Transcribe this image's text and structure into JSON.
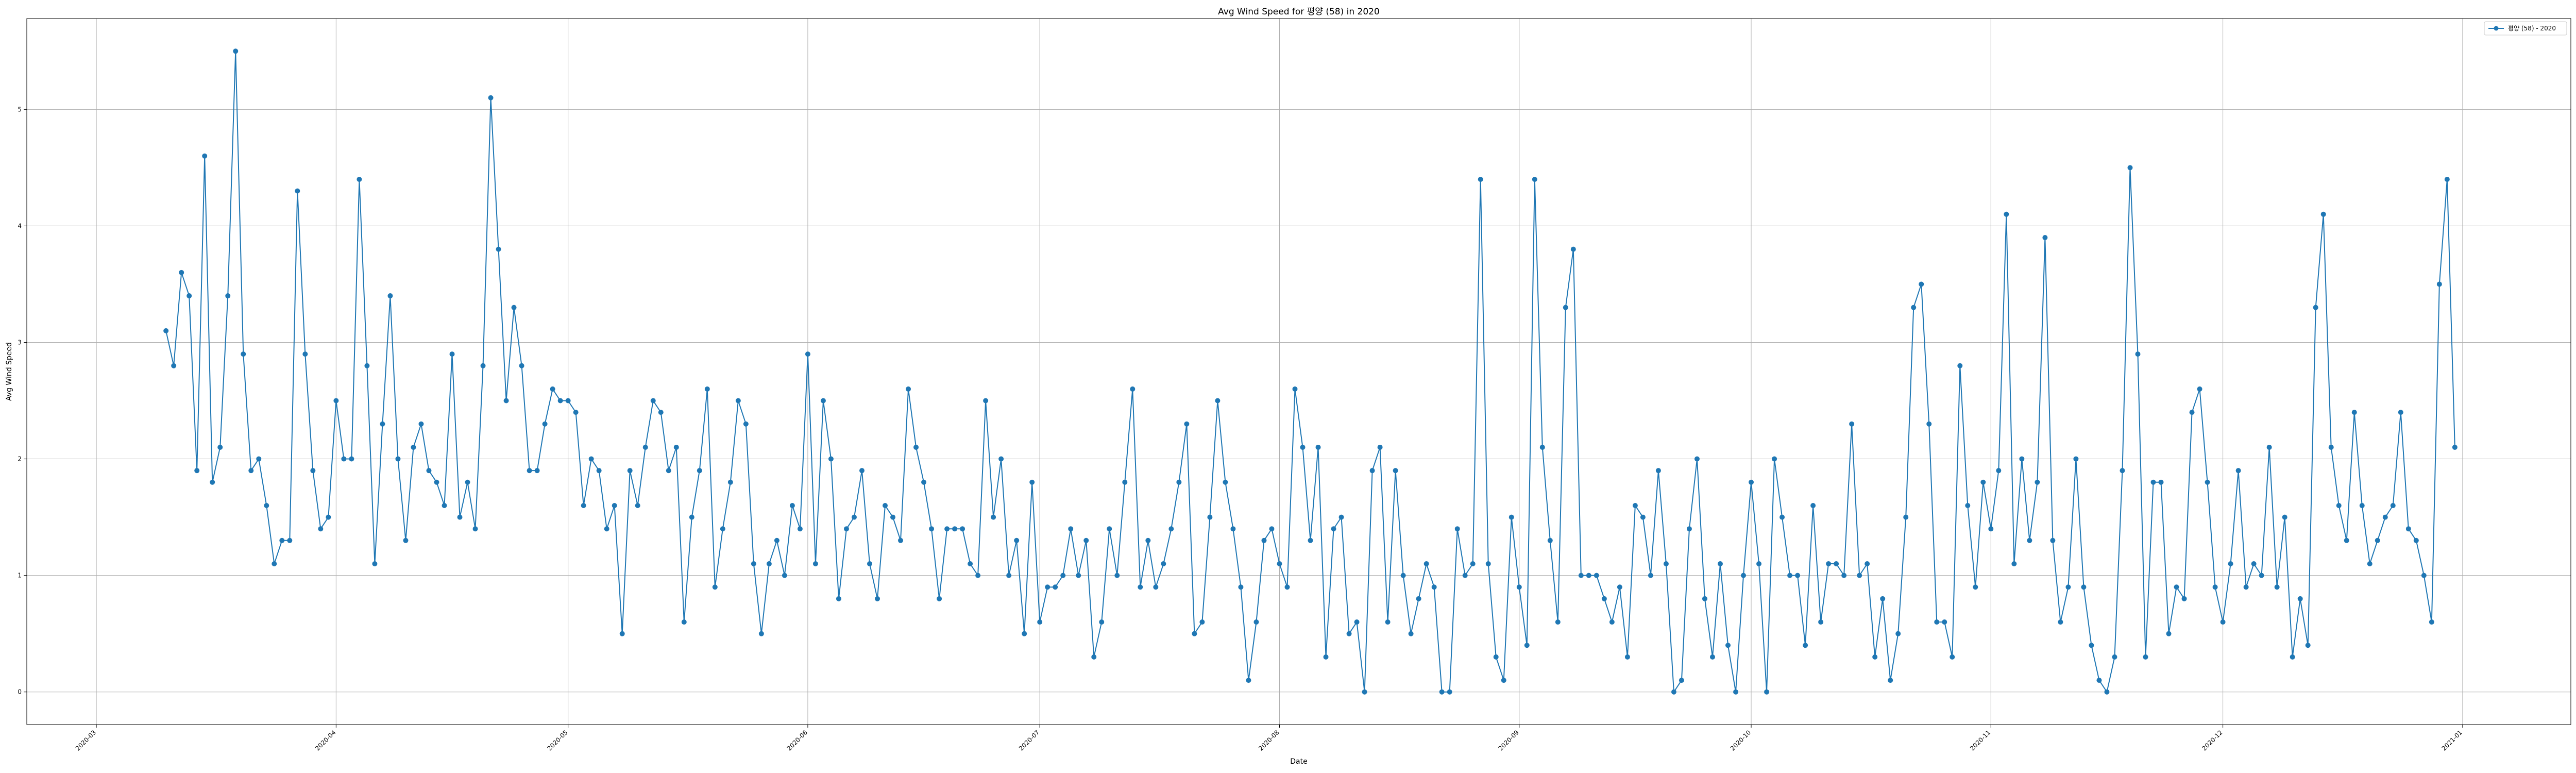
{
  "chart_data": {
    "type": "line",
    "title": "Avg Wind Speed for 평양 (58) in 2020",
    "xlabel": "Date",
    "ylabel": "Avg Wind Speed",
    "xlim": [
      "2020-02-21",
      "2021-01-15"
    ],
    "ylim": [
      -0.28,
      5.78
    ],
    "grid": true,
    "legend_position": "top-right",
    "x_ticks": [
      "2020-03",
      "2020-04",
      "2020-05",
      "2020-06",
      "2020-07",
      "2020-08",
      "2020-09",
      "2020-10",
      "2020-11",
      "2020-12",
      "2021-01"
    ],
    "y_ticks": [
      "0",
      "1",
      "2",
      "3",
      "4",
      "5"
    ],
    "colors": {
      "series": "#1f77b4",
      "grid": "#b0b0b0"
    },
    "start_date": "2020-03-10",
    "series": [
      {
        "name": "평양 (58) - 2020",
        "values": [
          3.1,
          2.8,
          3.6,
          3.4,
          1.9,
          4.6,
          1.8,
          2.1,
          3.4,
          5.5,
          2.9,
          1.9,
          2.0,
          1.6,
          1.1,
          1.3,
          1.3,
          4.3,
          2.9,
          1.9,
          1.4,
          1.5,
          2.5,
          2.0,
          2.0,
          4.4,
          2.8,
          1.1,
          2.3,
          3.4,
          2.0,
          1.3,
          2.1,
          2.3,
          1.9,
          1.8,
          1.6,
          2.9,
          1.5,
          1.8,
          1.4,
          2.8,
          5.1,
          3.8,
          2.5,
          3.3,
          2.8,
          1.9,
          1.9,
          2.3,
          2.6,
          2.5,
          2.5,
          2.4,
          1.6,
          2.0,
          1.9,
          1.4,
          1.6,
          0.5,
          1.9,
          1.6,
          2.1,
          2.5,
          2.4,
          1.9,
          2.1,
          0.6,
          1.5,
          1.9,
          2.6,
          0.9,
          1.4,
          1.8,
          2.5,
          2.3,
          1.1,
          0.5,
          1.1,
          1.3,
          1.0,
          1.6,
          1.4,
          2.9,
          1.1,
          2.5,
          2.0,
          0.8,
          1.4,
          1.5,
          1.9,
          1.1,
          0.8,
          1.6,
          1.5,
          1.3,
          2.6,
          2.1,
          1.8,
          1.4,
          0.8,
          1.4,
          1.4,
          1.4,
          1.1,
          1.0,
          2.5,
          1.5,
          2.0,
          1.0,
          1.3,
          0.5,
          1.8,
          0.6,
          0.9,
          0.9,
          1.0,
          1.4,
          1.0,
          1.3,
          0.3,
          0.6,
          1.4,
          1.0,
          1.8,
          2.6,
          0.9,
          1.3,
          0.9,
          1.1,
          1.4,
          1.8,
          2.3,
          0.5,
          0.6,
          1.5,
          2.5,
          1.8,
          1.4,
          0.9,
          0.1,
          0.6,
          1.3,
          1.4,
          1.1,
          0.9,
          2.6,
          2.1,
          1.3,
          2.1,
          0.3,
          1.4,
          1.5,
          0.5,
          0.6,
          0.0,
          1.9,
          2.1,
          0.6,
          1.9,
          1.0,
          0.5,
          0.8,
          1.1,
          0.9,
          0.0,
          0.0,
          1.4,
          1.0,
          1.1,
          4.4,
          1.1,
          0.3,
          0.1,
          1.5,
          0.9,
          0.4,
          4.4,
          2.1,
          1.3,
          0.6,
          3.3,
          3.8,
          1.0,
          1.0,
          1.0,
          0.8,
          0.6,
          0.9,
          0.3,
          1.6,
          1.5,
          1.0,
          1.9,
          1.1,
          0.0,
          0.1,
          1.4,
          2.0,
          0.8,
          0.3,
          1.1,
          0.4,
          0.0,
          1.0,
          1.8,
          1.1,
          0.0,
          2.0,
          1.5,
          1.0,
          1.0,
          0.4,
          1.6,
          0.6,
          1.1,
          1.1,
          1.0,
          2.3,
          1.0,
          1.1,
          0.3,
          0.8,
          0.1,
          0.5,
          1.5,
          3.3,
          3.5,
          2.3,
          0.6,
          0.6,
          0.3,
          2.8,
          1.6,
          0.9,
          1.8,
          1.4,
          1.9,
          4.1,
          1.1,
          2.0,
          1.3,
          1.8,
          3.9,
          1.3,
          0.6,
          0.9,
          2.0,
          0.9,
          0.4,
          0.1,
          0.0,
          0.3,
          1.9,
          4.5,
          2.9,
          0.3,
          1.8,
          1.8,
          0.5,
          0.9,
          0.8,
          2.4,
          2.6,
          1.8,
          0.9,
          0.6,
          1.1,
          1.9,
          0.9,
          1.1,
          1.0,
          2.1,
          0.9,
          1.5,
          0.3,
          0.8,
          0.4,
          3.3,
          4.1,
          2.1,
          1.6,
          1.3,
          2.4,
          1.6,
          1.1,
          1.3,
          1.5,
          1.6,
          2.4,
          1.4,
          1.3,
          1.0,
          0.6,
          3.5,
          4.4,
          2.1
        ]
      }
    ]
  }
}
